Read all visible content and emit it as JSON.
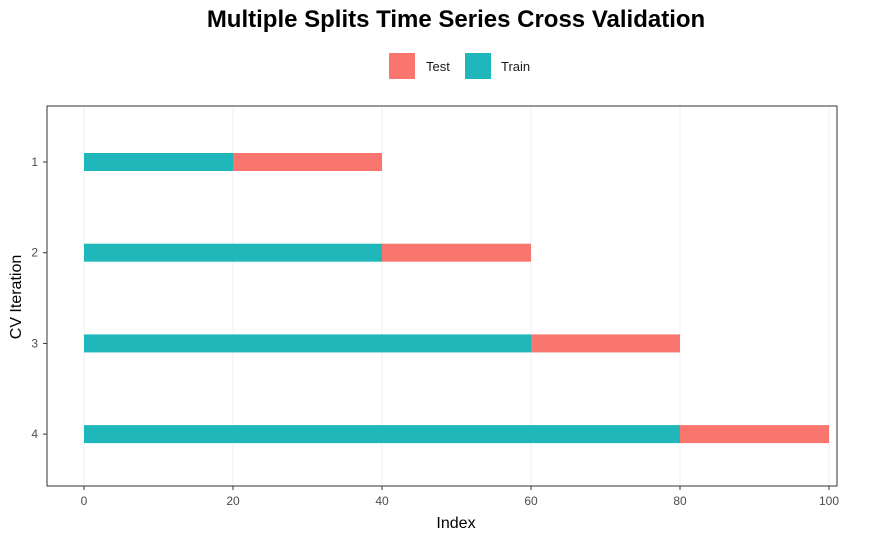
{
  "chart_data": {
    "type": "bar",
    "orientation": "horizontal-stacked-segments",
    "title": "Multiple Splits Time Series Cross Validation",
    "xlabel": "Index",
    "ylabel": "CV Iteration",
    "xlim": [
      0,
      100
    ],
    "x_ticks": [
      "0",
      "20",
      "40",
      "60",
      "80",
      "100"
    ],
    "categories": [
      "1",
      "2",
      "3",
      "4"
    ],
    "legend": {
      "position": "top",
      "entries": [
        {
          "name": "Test",
          "color": "#F8766D"
        },
        {
          "name": "Train",
          "color": "#1FB7B9"
        }
      ]
    },
    "series": [
      {
        "name": "Train",
        "color": "#1FB7B9",
        "segments": [
          [
            0,
            20
          ],
          [
            0,
            40
          ],
          [
            0,
            60
          ],
          [
            0,
            80
          ]
        ]
      },
      {
        "name": "Test",
        "color": "#F8766D",
        "segments": [
          [
            20,
            40
          ],
          [
            40,
            60
          ],
          [
            60,
            80
          ],
          [
            80,
            100
          ]
        ]
      }
    ],
    "grid": true
  }
}
